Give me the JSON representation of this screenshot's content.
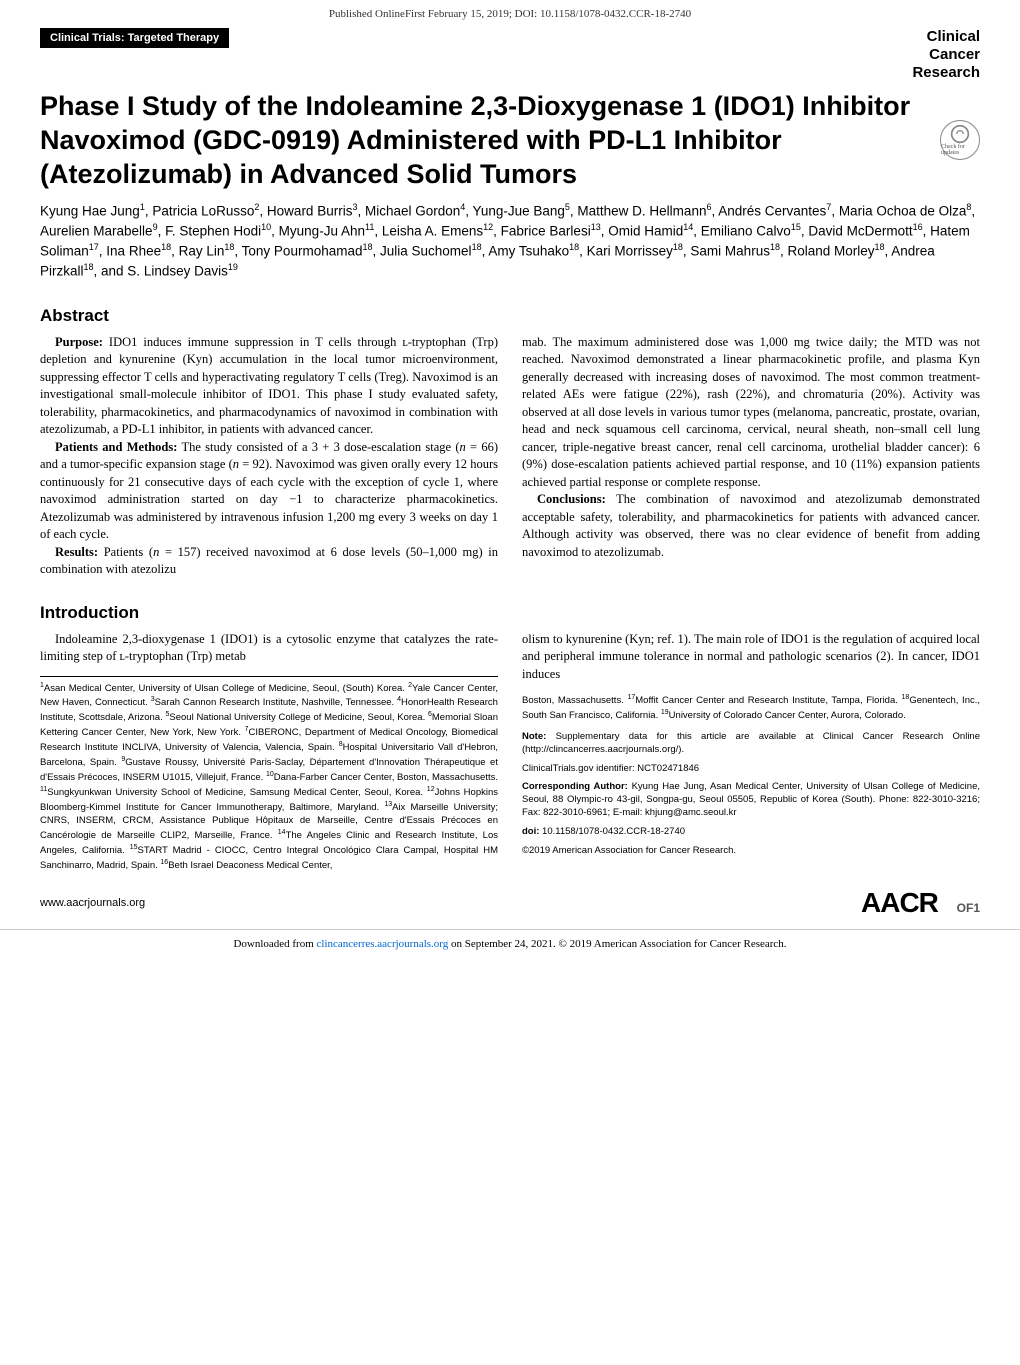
{
  "banner": "Published OnlineFirst February 15, 2019; DOI: 10.1158/1078-0432.CCR-18-2740",
  "category": "Clinical Trials: Targeted Therapy",
  "journal": {
    "line1": "Clinical",
    "line2": "Cancer",
    "line3": "Research"
  },
  "title": "Phase I Study of the Indoleamine 2,3-Dioxygenase 1 (IDO1) Inhibitor Navoximod (GDC-0919) Administered with PD-L1 Inhibitor (Atezolizumab) in Advanced Solid Tumors",
  "check_updates": "Check for updates",
  "authors_html": "Kyung Hae Jung<sup>1</sup>, Patricia LoRusso<sup>2</sup>, Howard Burris<sup>3</sup>, Michael Gordon<sup>4</sup>, Yung-Jue Bang<sup>5</sup>, Matthew D. Hellmann<sup>6</sup>, Andrés Cervantes<sup>7</sup>, Maria Ochoa de Olza<sup>8</sup>, Aurelien Marabelle<sup>9</sup>, F. Stephen Hodi<sup>10</sup>, Myung-Ju Ahn<sup>11</sup>, Leisha A. Emens<sup>12</sup>, Fabrice Barlesi<sup>13</sup>, Omid Hamid<sup>14</sup>, Emiliano Calvo<sup>15</sup>, David McDermott<sup>16</sup>, Hatem Soliman<sup>17</sup>, Ina Rhee<sup>18</sup>, Ray Lin<sup>18</sup>, Tony Pourmohamad<sup>18</sup>, Julia Suchomel<sup>18</sup>, Amy Tsuhako<sup>18</sup>, Kari Morrissey<sup>18</sup>, Sami Mahrus<sup>18</sup>, Roland Morley<sup>18</sup>, Andrea Pirzkall<sup>18</sup>, and S. Lindsey Davis<sup>19</sup>",
  "abstract_heading": "Abstract",
  "abstract": {
    "purpose": "<b>Purpose:</b> IDO1 induces immune suppression in T cells through ʟ-tryptophan (Trp) depletion and kynurenine (Kyn) accumulation in the local tumor microenvironment, suppressing effector T cells and hyperactivating regulatory T cells (Treg). Navoximod is an investigational small-molecule inhibitor of IDO1. This phase I study evaluated safety, tolerability, pharmacokinetics, and pharmacodynamics of navoximod in combination with atezolizumab, a PD-L1 inhibitor, in patients with advanced cancer.",
    "methods": "<b>Patients and Methods:</b> The study consisted of a 3 + 3 dose-escalation stage (<i>n</i> = 66) and a tumor-specific expansion stage (<i>n</i> = 92). Navoximod was given orally every 12 hours continuously for 21 consecutive days of each cycle with the exception of cycle 1, where navoximod administration started on day −1 to characterize pharmacokinetics. Atezolizumab was administered by intravenous infusion 1,200 mg every 3 weeks on day 1 of each cycle.",
    "results1": "<b>Results:</b> Patients (<i>n</i> = 157) received navoximod at 6 dose levels (50–1,000 mg) in combination with atezolizu",
    "results2": "mab. The maximum administered dose was 1,000 mg twice daily; the MTD was not reached. Navoximod demonstrated a linear pharmacokinetic profile, and plasma Kyn generally decreased with increasing doses of navoximod. The most common treatment-related AEs were fatigue (22%), rash (22%), and chromaturia (20%). Activity was observed at all dose levels in various tumor types (melanoma, pancreatic, prostate, ovarian, head and neck squamous cell carcinoma, cervical, neural sheath, non–small cell lung cancer, triple-negative breast cancer, renal cell carcinoma, urothelial bladder cancer): 6 (9%) dose-escalation patients achieved partial response, and 10 (11%) expansion patients achieved partial response or complete response.",
    "conclusions": "<b>Conclusions:</b> The combination of navoximod and atezolizumab demonstrated acceptable safety, tolerability, and pharmacokinetics for patients with advanced cancer. Although activity was observed, there was no clear evidence of benefit from adding navoximod to atezolizumab."
  },
  "intro_heading": "Introduction",
  "intro": {
    "p1": "Indoleamine 2,3-dioxygenase 1 (IDO1) is a cytosolic enzyme that catalyzes the rate-limiting step of ʟ-tryptophan (Trp) metab",
    "p2": "olism to kynurenine (Kyn; ref. 1). The main role of IDO1 is the regulation of acquired local and peripheral immune tolerance in normal and pathologic scenarios (2). In cancer, IDO1 induces"
  },
  "affiliations1": "<sup>1</sup>Asan Medical Center, University of Ulsan College of Medicine, Seoul, (South) Korea. <sup>2</sup>Yale Cancer Center, New Haven, Connecticut. <sup>3</sup>Sarah Cannon Research Institute, Nashville, Tennessee. <sup>4</sup>HonorHealth Research Institute, Scottsdale, Arizona. <sup>5</sup>Seoul National University College of Medicine, Seoul, Korea. <sup>6</sup>Memorial Sloan Kettering Cancer Center, New York, New York. <sup>7</sup>CIBERONC, Department of Medical Oncology, Biomedical Research Institute INCLIVA, University of Valencia, Valencia, Spain. <sup>8</sup>Hospital Universitario Vall d'Hebron, Barcelona, Spain. <sup>9</sup>Gustave Roussy, Université Paris-Saclay, Département d'Innovation Thérapeutique et d'Essais Précoces, INSERM U1015, Villejuif, France. <sup>10</sup>Dana-Farber Cancer Center, Boston, Massachusetts. <sup>11</sup>Sungkyunkwan University School of Medicine, Samsung Medical Center, Seoul, Korea. <sup>12</sup>Johns Hopkins Bloomberg-Kimmel Institute for Cancer Immunotherapy, Baltimore, Maryland. <sup>13</sup>Aix Marseille University; CNRS, INSERM, CRCM, Assistance Publique Hôpitaux de Marseille, Centre d'Essais Précoces en Cancérologie de Marseille CLIP2, Marseille, France. <sup>14</sup>The Angeles Clinic and Research Institute, Los Angeles, California. <sup>15</sup>START Madrid - CIOCC, Centro Integral Oncológico Clara Campal, Hospital HM Sanchinarro, Madrid, Spain. <sup>16</sup>Beth Israel Deaconess Medical Center,",
  "affiliations2": "Boston, Massachusetts. <sup>17</sup>Moffit Cancer Center and Research Institute, Tampa, Florida. <sup>18</sup>Genentech, Inc., South San Francisco, California. <sup>19</sup>University of Colorado Cancer Center, Aurora, Colorado.",
  "note": "<b>Note:</b> Supplementary data for this article are available at Clinical Cancer Research Online (http://clincancerres.aacrjournals.org/).",
  "trial_id": "ClinicalTrials.gov identifier: NCT02471846",
  "corresponding": "<b>Corresponding Author:</b> Kyung Hae Jung, Asan Medical Center, University of Ulsan College of Medicine, Seoul, 88 Olympic-ro 43-gil, Songpa-gu, Seoul 05505, Republic of Korea (South). Phone: 822-3010-3216; Fax: 822-3010-6961; E-mail: khjung@amc.seoul.kr",
  "doi": "<b>doi:</b> 10.1158/1078-0432.CCR-18-2740",
  "copyright": "©2019 American Association for Cancer Research.",
  "site_url": "www.aacrjournals.org",
  "aacr": "AACR",
  "page_num": "OF1",
  "download": {
    "prefix": "Downloaded from ",
    "link": "clincancerres.aacrjournals.org",
    "suffix": " on September 24, 2021. © 2019 American Association for Cancer Research."
  },
  "colors": {
    "black": "#000000",
    "link": "#0066cc",
    "gray": "#555555"
  }
}
